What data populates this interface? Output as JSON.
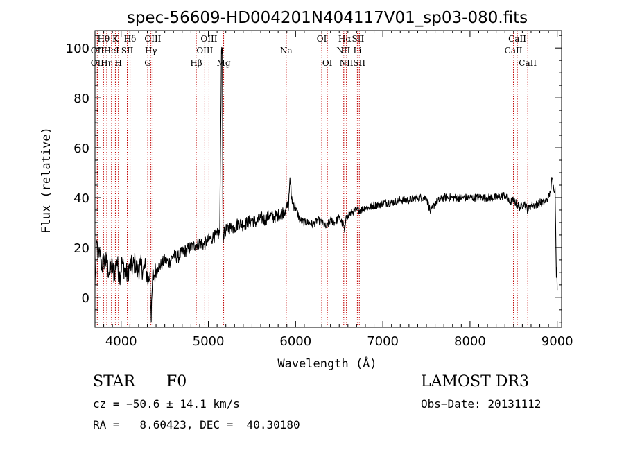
{
  "chart_data": {
    "type": "line",
    "title": "spec-56609-HD004201N404117V01_sp03-080.fits",
    "xlabel": "Wavelength (Å)",
    "ylabel": "Flux (relative)",
    "xlim": [
      3700,
      9050
    ],
    "ylim": [
      -12,
      107
    ],
    "xticks": [
      4000,
      5000,
      6000,
      7000,
      8000,
      9000
    ],
    "yticks": [
      0,
      20,
      40,
      60,
      80,
      100
    ],
    "grid": false,
    "series": [
      {
        "x": [
          3700,
          3720,
          3740,
          3760,
          3780,
          3800,
          3830,
          3860,
          3890,
          3920,
          3950,
          3980,
          4010,
          4040,
          4070,
          4100,
          4130,
          4160,
          4190,
          4220,
          4250,
          4280,
          4310,
          4330,
          4345,
          4360,
          4380,
          4420,
          4460,
          4500,
          4550,
          4600,
          4650,
          4700,
          4750,
          4800,
          4850,
          4900,
          4950,
          5000,
          5050,
          5100,
          5130,
          5150,
          5160,
          5165,
          5170,
          5175,
          5185,
          5200,
          5250,
          5300,
          5350,
          5400,
          5450,
          5500,
          5550,
          5600,
          5650,
          5700,
          5750,
          5800,
          5850,
          5880,
          5900,
          5920,
          5935,
          5950,
          5970,
          6000,
          6050,
          6100,
          6150,
          6200,
          6250,
          6300,
          6350,
          6400,
          6450,
          6500,
          6530,
          6550,
          6563,
          6575,
          6600,
          6650,
          6700,
          6750,
          6800,
          6850,
          6900,
          6950,
          7000,
          7100,
          7200,
          7300,
          7400,
          7500,
          7550,
          7600,
          7650,
          7700,
          7800,
          7900,
          8000,
          8100,
          8200,
          8300,
          8400,
          8450,
          8500,
          8542,
          8580,
          8620,
          8662,
          8700,
          8750,
          8800,
          8850,
          8900,
          8920,
          8940,
          8960,
          8975,
          8985,
          8990,
          8995,
          9000
        ],
        "y": [
          5,
          22,
          16,
          18,
          12,
          15,
          14,
          10,
          13,
          9,
          15,
          8,
          14,
          11,
          9,
          13,
          12,
          14,
          10,
          13,
          11,
          12,
          6,
          10,
          -10,
          8,
          9,
          12,
          13,
          15,
          14,
          17,
          16,
          18,
          19,
          20,
          21,
          22,
          21,
          23,
          24,
          25,
          26,
          99,
          100,
          40,
          22,
          25,
          26,
          27,
          28,
          28,
          30,
          29,
          30,
          31,
          30,
          32,
          31,
          33,
          32,
          33,
          34,
          35,
          36,
          37,
          48,
          41,
          38,
          36,
          31,
          30,
          30,
          29,
          31,
          30,
          28,
          31,
          30,
          32,
          30,
          29,
          26,
          31,
          33,
          34,
          35,
          35,
          36,
          36,
          37,
          37,
          38,
          38,
          39,
          39,
          40,
          40,
          34,
          38,
          39,
          40,
          40,
          40,
          40,
          40,
          40,
          40,
          41,
          38,
          39,
          37,
          36,
          38,
          35,
          37,
          37,
          38,
          38,
          40,
          42,
          48,
          43,
          44,
          20,
          8,
          12,
          3
        ]
      }
    ],
    "line_markers": [
      {
        "label": "Hθ",
        "wave": 3798,
        "row": 0
      },
      {
        "label": "OII",
        "wave": 3727,
        "row": 1
      },
      {
        "label": "OII",
        "wave": 3727,
        "row": 2
      },
      {
        "label": "Hη",
        "wave": 3835,
        "row": 2
      },
      {
        "label": "HeI",
        "wave": 3889,
        "row": 1
      },
      {
        "label": "K",
        "wave": 3934,
        "row": 0
      },
      {
        "label": "SII",
        "wave": 4070,
        "row": 1
      },
      {
        "label": "H",
        "wave": 3968,
        "row": 2
      },
      {
        "label": "Hδ",
        "wave": 4102,
        "row": 0
      },
      {
        "label": "OIII",
        "wave": 4363,
        "row": 0
      },
      {
        "label": "Hγ",
        "wave": 4341,
        "row": 1
      },
      {
        "label": "G",
        "wave": 4305,
        "row": 2
      },
      {
        "label": "Hβ",
        "wave": 4861,
        "row": 2
      },
      {
        "label": "OIII",
        "wave": 5007,
        "row": 0
      },
      {
        "label": "OIII",
        "wave": 4959,
        "row": 1
      },
      {
        "label": "Mg",
        "wave": 5175,
        "row": 2
      },
      {
        "label": "Na",
        "wave": 5893,
        "row": 1
      },
      {
        "label": "OI",
        "wave": 6300,
        "row": 0
      },
      {
        "label": "OI",
        "wave": 6364,
        "row": 2
      },
      {
        "label": "Hα",
        "wave": 6563,
        "row": 0
      },
      {
        "label": "NII",
        "wave": 6548,
        "row": 1
      },
      {
        "label": "NII",
        "wave": 6583,
        "row": 2
      },
      {
        "label": "SII",
        "wave": 6716,
        "row": 0
      },
      {
        "label": "Li",
        "wave": 6708,
        "row": 1
      },
      {
        "label": "SII",
        "wave": 6731,
        "row": 2
      },
      {
        "label": "CaII",
        "wave": 8542,
        "row": 0
      },
      {
        "label": "CaII",
        "wave": 8498,
        "row": 1
      },
      {
        "label": "CaII",
        "wave": 8662,
        "row": 2
      }
    ]
  },
  "info": {
    "class_label": "STAR",
    "subclass": "F0",
    "survey": "LAMOST DR3",
    "cz_line": "cz = −50.6 ± 14.1 km/s",
    "obs_line": "Obs−Date: 20131112",
    "radec_line": "RA =   8.60423, DEC =  40.30180"
  }
}
